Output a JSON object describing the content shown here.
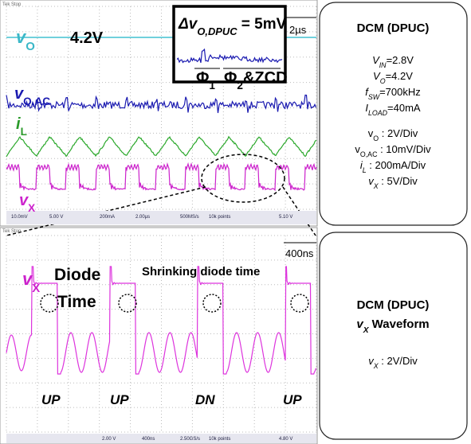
{
  "top_scope": {
    "header": "Tek Stop",
    "vo_label": [
      {
        "text": "v",
        "italic": true
      },
      {
        "text": "O",
        "sub": true
      }
    ],
    "vo_value": "4.2V",
    "inset_title": [
      {
        "text": "Δv",
        "italic": true
      },
      {
        "text": "O,DPUC",
        "sub": true,
        "italic": true
      },
      {
        "text": " = 5mV"
      }
    ],
    "time_scale": "2µs",
    "phase1": [
      {
        "text": "Φ"
      },
      {
        "text": "1",
        "sub": true
      }
    ],
    "phase2": [
      {
        "text": "Φ"
      },
      {
        "text": "2",
        "sub": true
      },
      {
        "text": "&ZCD"
      }
    ],
    "voac_label": [
      {
        "text": "v",
        "italic": true
      },
      {
        "text": "O,AC",
        "sub": true
      }
    ],
    "il_label": [
      {
        "text": "i",
        "italic": true
      },
      {
        "text": "L",
        "sub": true
      }
    ],
    "vx_label": [
      {
        "text": "v",
        "italic": true
      },
      {
        "text": "X",
        "sub": true
      }
    ],
    "status": [
      "10.0mV",
      "5.00 V",
      "200mA",
      "2.00µs",
      "500MS/s",
      "10k points",
      "5.10 V"
    ]
  },
  "bottom_scope": {
    "header": "Tek Stop",
    "time_scale": "400ns",
    "vx_label": [
      {
        "text": "v",
        "italic": true
      },
      {
        "text": "X",
        "sub": true
      }
    ],
    "diode": "Diode",
    "time": "Time",
    "shrinking": "Shrinking diode time",
    "phases": [
      "UP",
      "UP",
      "DN",
      "UP"
    ],
    "status": [
      "2.00 V",
      "400ns",
      "2.50GS/s",
      "10k points",
      "4.80 V"
    ]
  },
  "info_top": {
    "title": "DCM (DPUC)",
    "conditions": [
      [
        {
          "text": "V",
          "italic": true
        },
        {
          "text": "IN",
          "sub": true,
          "italic": true
        },
        {
          "text": "=2.8V"
        }
      ],
      [
        {
          "text": "V",
          "italic": true
        },
        {
          "text": "O",
          "sub": true,
          "italic": true
        },
        {
          "text": "=4.2V"
        }
      ],
      [
        {
          "text": "f",
          "italic": true
        },
        {
          "text": "SW",
          "sub": true,
          "italic": true
        },
        {
          "text": "=700kHz"
        }
      ],
      [
        {
          "text": "I",
          "italic": true
        },
        {
          "text": "LOAD",
          "sub": true,
          "italic": true
        },
        {
          "text": "=40mA"
        }
      ]
    ],
    "scales": [
      [
        {
          "text": "v"
        },
        {
          "text": "O",
          "sub": true
        },
        {
          "text": " : 2V/Div"
        }
      ],
      [
        {
          "text": "v"
        },
        {
          "text": "O,AC",
          "sub": true
        },
        {
          "text": " : 10mV/Div"
        }
      ],
      [
        {
          "text": "i",
          "italic": true
        },
        {
          "text": "L",
          "sub": true,
          "italic": true
        },
        {
          "text": " : 200mA/Div"
        }
      ],
      [
        {
          "text": "v",
          "italic": true
        },
        {
          "text": "X",
          "sub": true,
          "italic": true
        },
        {
          "text": " : 5V/Div"
        }
      ]
    ]
  },
  "info_bottom": {
    "title": "DCM (DPUC)",
    "subtitle": [
      {
        "text": "v",
        "italic": true
      },
      {
        "text": "X",
        "sub": true,
        "italic": true
      },
      {
        "text": " Waveform"
      }
    ],
    "scale": [
      {
        "text": "v",
        "italic": true
      },
      {
        "text": "X",
        "sub": true,
        "italic": true
      },
      {
        "text": " : 2V/Div"
      }
    ]
  }
}
